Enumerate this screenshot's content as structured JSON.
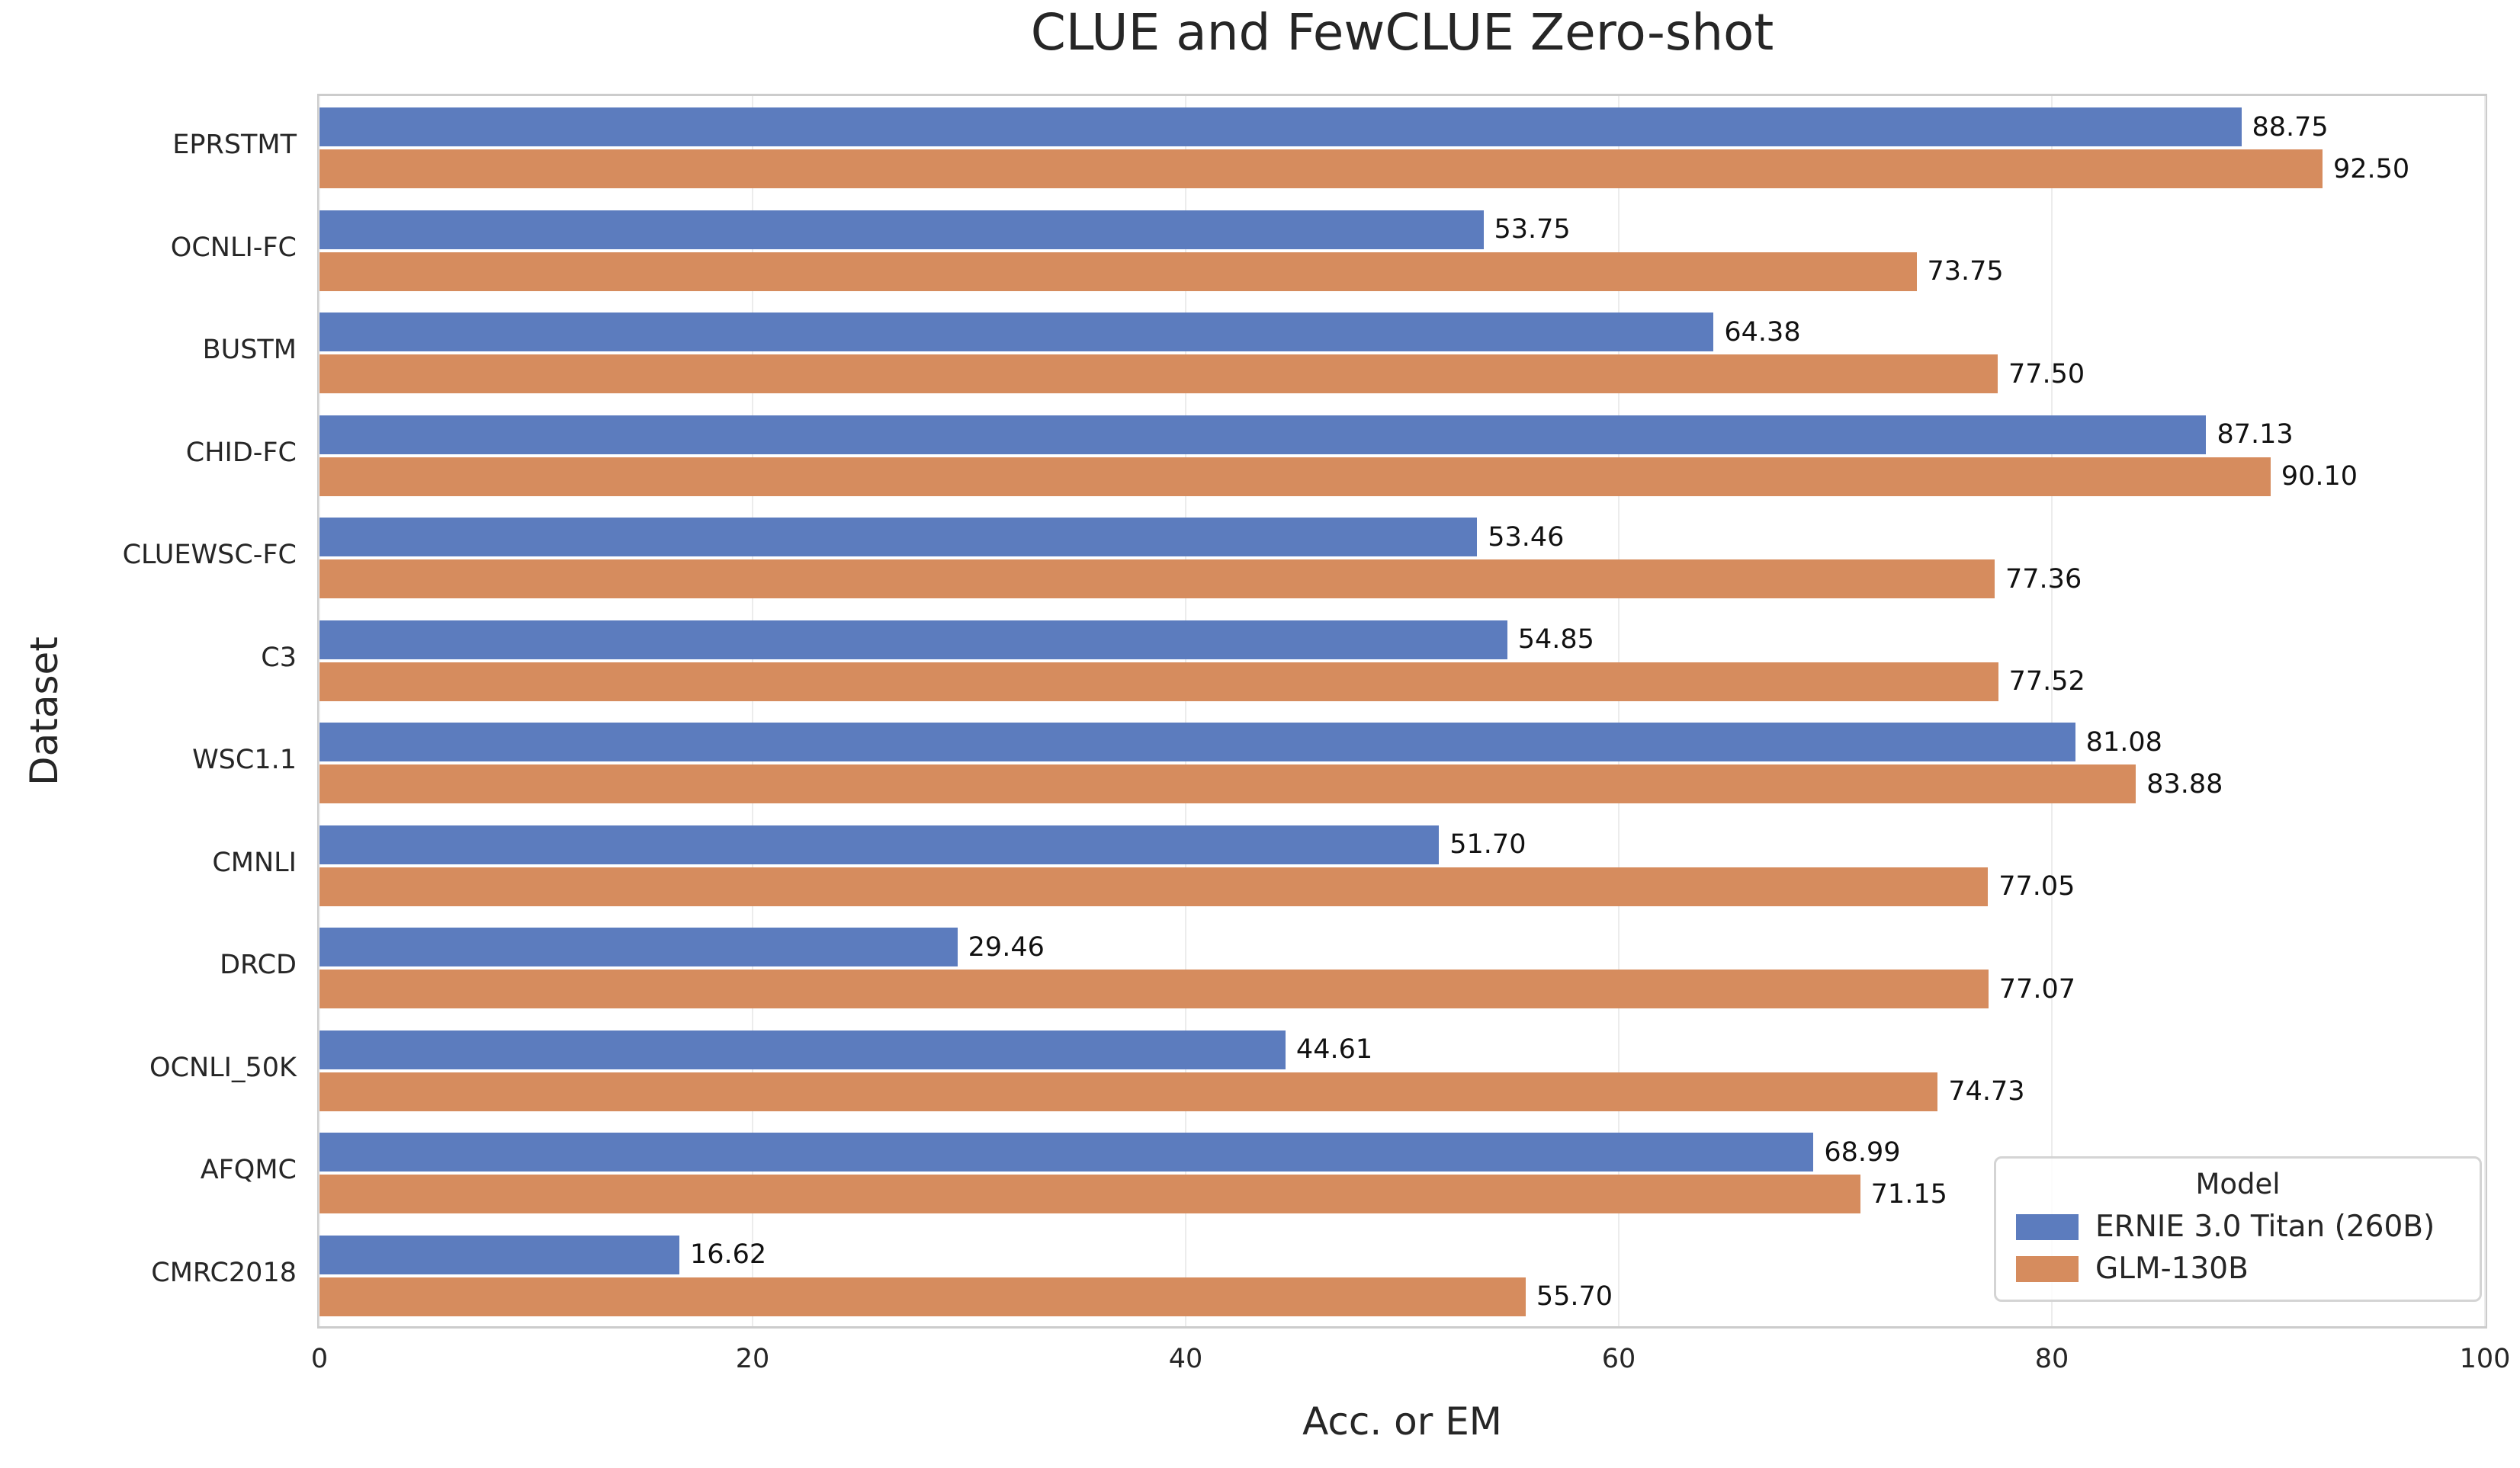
{
  "figure": {
    "title": "CLUE and FewCLUE Zero-shot",
    "xlabel": "Acc. or EM",
    "ylabel": "Dataset"
  },
  "legend": {
    "title": "Model",
    "entries": [
      {
        "label": "ERNIE 3.0 Titan (260B)",
        "color": "#5C7CBE"
      },
      {
        "label": "GLM-130B",
        "color": "#D68C5E"
      }
    ]
  },
  "chart_data": {
    "type": "bar",
    "orientation": "horizontal",
    "title": "CLUE and FewCLUE Zero-shot",
    "xlabel": "Acc. or EM",
    "ylabel": "Dataset",
    "xlim": [
      0,
      100
    ],
    "xticks": [
      0,
      20,
      40,
      60,
      80,
      100
    ],
    "grid": true,
    "legend_position": "lower right",
    "value_labels": true,
    "value_decimals": 2,
    "categories": [
      "EPRSTMT",
      "OCNLI-FC",
      "BUSTM",
      "CHID-FC",
      "CLUEWSC-FC",
      "C3",
      "WSC1.1",
      "CMNLI",
      "DRCD",
      "OCNLI_50K",
      "AFQMC",
      "CMRC2018"
    ],
    "series": [
      {
        "name": "ERNIE 3.0 Titan (260B)",
        "color": "#5C7CBE",
        "values": [
          88.75,
          53.75,
          64.38,
          87.13,
          53.46,
          54.85,
          81.08,
          51.7,
          29.46,
          44.61,
          68.99,
          16.62
        ]
      },
      {
        "name": "GLM-130B",
        "color": "#D68C5E",
        "values": [
          92.5,
          73.75,
          77.5,
          90.1,
          77.36,
          77.52,
          83.88,
          77.05,
          77.07,
          74.73,
          71.15,
          55.7
        ]
      }
    ]
  }
}
